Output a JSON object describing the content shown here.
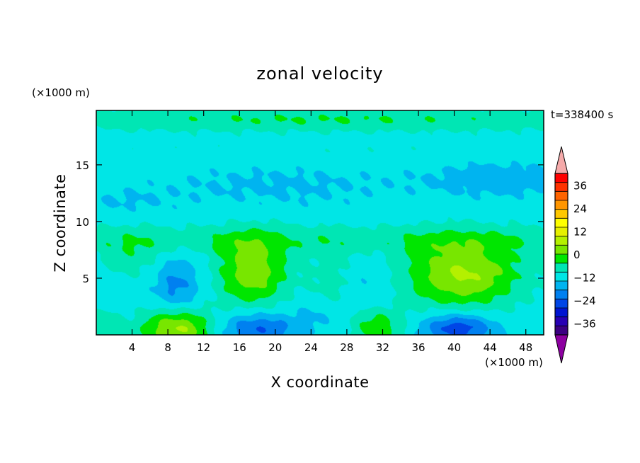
{
  "chart_data": {
    "type": "heatmap",
    "title": "zonal velocity",
    "xlabel": "X coordinate",
    "ylabel": "Z coordinate",
    "x_unit": "(×1000 m)",
    "z_unit": "(×1000 m)",
    "time_label": "t=338400 s",
    "xlim": [
      0,
      50
    ],
    "zlim": [
      0,
      19.8
    ],
    "x_ticks": [
      4,
      8,
      12,
      16,
      20,
      24,
      28,
      32,
      36,
      40,
      44,
      48
    ],
    "x_tick_labels": [
      "4",
      "8",
      "12",
      "16",
      "20",
      "24",
      "28",
      "32",
      "36",
      "40",
      "44",
      "48"
    ],
    "z_ticks": [
      5,
      10,
      15
    ],
    "z_tick_labels": [
      "5",
      "10",
      "15"
    ],
    "colorbar": {
      "min": -42,
      "max": 42,
      "step": 6,
      "extend": "both",
      "tick_values": [
        -36,
        -24,
        -12,
        0,
        12,
        24,
        36
      ],
      "tick_labels": [
        "−36",
        "−24",
        "−12",
        "0",
        "12",
        "24",
        "36"
      ],
      "colors": [
        "#3c0082",
        "#2800b4",
        "#0014d2",
        "#0046e6",
        "#0080f0",
        "#00b4f0",
        "#00e6e6",
        "#00e6b4",
        "#00e600",
        "#78e600",
        "#b4f000",
        "#e6f000",
        "#ffff00",
        "#ffc800",
        "#ff9600",
        "#ff6400",
        "#ff3200",
        "#ff0000"
      ],
      "under_color": "#8c00a0",
      "over_color": "#f5aaaa"
    },
    "field_features": [
      {
        "x": 25,
        "z": 19.0,
        "sx": 30,
        "sz": 0.7,
        "value": 9
      },
      {
        "x": 25,
        "z": 16.2,
        "sx": 30,
        "sz": 0.9,
        "value": 2
      },
      {
        "x": 20,
        "z": 13.2,
        "sx": 10,
        "sz": 1.5,
        "value": -4
      },
      {
        "x": 45,
        "z": 13.8,
        "sx": 6,
        "sz": 1.2,
        "value": -6
      },
      {
        "x": 3,
        "z": 11.8,
        "sx": 4,
        "sz": 0.8,
        "value": -3
      },
      {
        "x": 25,
        "z": 8.4,
        "sx": 35,
        "sz": 0.9,
        "value": 7
      },
      {
        "x": 4,
        "z": 7.0,
        "sx": 2.5,
        "sz": 1.5,
        "value": 6
      },
      {
        "x": 9,
        "z": 4.3,
        "sx": 1.8,
        "sz": 1.8,
        "value": -11
      },
      {
        "x": 17.5,
        "z": 5.6,
        "sx": 2.8,
        "sz": 2.2,
        "value": 19
      },
      {
        "x": 26.5,
        "z": 4.5,
        "sx": 1.8,
        "sz": 2.3,
        "value": 7
      },
      {
        "x": 30,
        "z": 4.5,
        "sx": 2.5,
        "sz": 2.0,
        "value": -4
      },
      {
        "x": 41,
        "z": 5.4,
        "sx": 4.5,
        "sz": 2.1,
        "value": 22
      },
      {
        "x": 9,
        "z": 0.5,
        "sx": 2.8,
        "sz": 1.3,
        "value": 23
      },
      {
        "x": 18,
        "z": 0.6,
        "sx": 3.0,
        "sz": 1.0,
        "value": -16
      },
      {
        "x": 25,
        "z": 1.8,
        "sx": 2.0,
        "sz": 1.2,
        "value": -5
      },
      {
        "x": 31.5,
        "z": 0.6,
        "sx": 2.0,
        "sz": 1.2,
        "value": 14
      },
      {
        "x": 40.5,
        "z": 0.6,
        "sx": 2.8,
        "sz": 0.9,
        "value": -20
      },
      {
        "x": 1,
        "z": 0.8,
        "sx": 1.2,
        "sz": 1.0,
        "value": 8
      }
    ],
    "field_background": -3
  }
}
